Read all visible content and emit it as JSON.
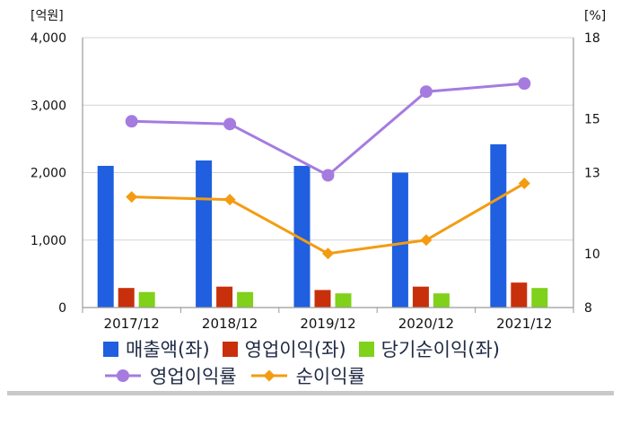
{
  "chart_data": {
    "type": "bar",
    "categories": [
      "2017/12",
      "2018/12",
      "2019/12",
      "2020/12",
      "2021/12"
    ],
    "left_axis": {
      "unit": "[억원]",
      "ylim": [
        0,
        4000
      ],
      "ticks": [
        0,
        1000,
        2000,
        3000,
        4000
      ],
      "tick_labels": [
        "0",
        "1,000",
        "2,000",
        "3,000",
        "4,000"
      ]
    },
    "right_axis": {
      "unit": "[%]",
      "ylim": [
        8,
        18
      ],
      "ticks": [
        8,
        10,
        13,
        15,
        18
      ],
      "tick_labels": [
        "8",
        "10",
        "13",
        "15",
        "18"
      ]
    },
    "bar_series": [
      {
        "name": "매출액(좌)",
        "color": "#1f5fe0",
        "values": [
          2100,
          2180,
          2100,
          2000,
          2420
        ]
      },
      {
        "name": "영업이익(좌)",
        "color": "#c8300c",
        "values": [
          290,
          310,
          260,
          310,
          370
        ]
      },
      {
        "name": "당기순이익(좌)",
        "color": "#7fd11a",
        "values": [
          230,
          230,
          210,
          210,
          290
        ]
      }
    ],
    "line_series": [
      {
        "name": "영업이익률",
        "color": "#a57be0",
        "marker": "circle",
        "values": [
          14.9,
          14.8,
          12.9,
          16.0,
          16.3
        ]
      },
      {
        "name": "순이익률",
        "color": "#f39c12",
        "marker": "diamond",
        "values": [
          12.1,
          12.0,
          10.0,
          10.5,
          12.6
        ]
      }
    ],
    "grid": true,
    "legend_position": "bottom"
  }
}
